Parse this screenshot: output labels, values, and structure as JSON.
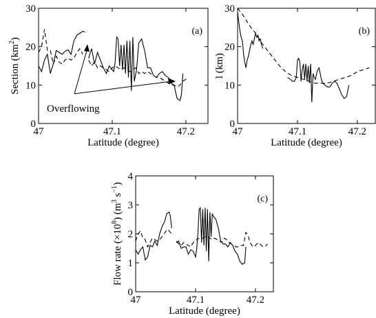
{
  "chart_data": [
    {
      "type": "line",
      "panel_label": "(a)",
      "xlabel": "Latitude (degree)",
      "ylabel": "Section (km",
      "ylabel_sup": "2",
      "ylabel_close": ")",
      "xlim": [
        47,
        47.23
      ],
      "ylim": [
        0,
        30
      ],
      "xticks": [
        "47",
        "47.1",
        "47.2"
      ],
      "xtick_values": [
        47,
        47.1,
        47.2
      ],
      "yticks": [
        "0",
        "10",
        "20",
        "30"
      ],
      "ytick_values": [
        0,
        10,
        20,
        30
      ],
      "annotation": "Overflowing",
      "series": [
        {
          "style": "solid",
          "x": [
            47.0,
            47.004,
            47.008,
            47.012,
            47.016,
            47.02,
            47.024,
            47.028,
            47.032,
            47.036,
            47.04,
            47.044,
            47.048,
            47.052,
            47.056,
            47.06,
            47.064,
            47.068,
            47.072,
            47.076,
            47.08,
            47.084,
            47.088,
            47.092,
            47.096,
            47.1,
            47.104,
            47.108,
            47.11,
            47.112,
            47.114,
            47.116,
            47.118,
            47.12,
            47.122,
            47.124,
            47.126,
            47.128,
            47.13,
            47.132,
            47.134,
            47.136,
            47.138,
            47.14,
            47.142,
            47.144,
            47.146,
            47.148,
            47.15,
            47.154,
            47.158,
            47.162,
            47.166,
            47.17,
            47.174,
            47.178,
            47.182,
            47.186,
            47.19,
            47.194,
            47.198,
            47.202,
            47.206,
            47.21
          ],
          "y": [
            15,
            14,
            16,
            18,
            13.5,
            16,
            19,
            18.5,
            18,
            18.5,
            19,
            18,
            20,
            21,
            22,
            23.5,
            24,
            null,
            null,
            null,
            null,
            null,
            null,
            null,
            null,
            null,
            null,
            null,
            null,
            20.5,
            19.5,
            null,
            null,
            null,
            null,
            null,
            null,
            null,
            null,
            null,
            null,
            null,
            null,
            null,
            null,
            null,
            null,
            null,
            null,
            null,
            null,
            null,
            null,
            null,
            null,
            null,
            null,
            null,
            null,
            null,
            null,
            null,
            null,
            null
          ]
        }
      ]
    },
    {
      "type": "line",
      "panel_label": "(b)",
      "xlabel": "Latitude (degree)",
      "ylabel": "l (km)",
      "xlim": [
        47,
        47.23
      ],
      "ylim": [
        0,
        30
      ],
      "xticks": [
        "47",
        "47.1",
        "47.2"
      ],
      "xtick_values": [
        47,
        47.1,
        47.2
      ],
      "yticks": [
        "0",
        "10",
        "20",
        "30"
      ],
      "ytick_values": [
        0,
        10,
        20,
        30
      ]
    },
    {
      "type": "line",
      "panel_label": "(c)",
      "xlabel": "Latitude (degree)",
      "ylabel_main": "Flow rate (×10",
      "ylabel_sup1": "8",
      "ylabel_mid": ") (m",
      "ylabel_sup2": "3",
      "ylabel_mid2": " s",
      "ylabel_sup3": "−1",
      "ylabel_close": ")",
      "xlim": [
        47,
        47.23
      ],
      "ylim": [
        0,
        4
      ],
      "xticks": [
        "47",
        "47.1",
        "47.2"
      ],
      "xtick_values": [
        47,
        47.1,
        47.2
      ],
      "yticks": [
        "0",
        "1",
        "2",
        "3",
        "4"
      ],
      "ytick_values": [
        0,
        1,
        2,
        3,
        4
      ]
    }
  ]
}
